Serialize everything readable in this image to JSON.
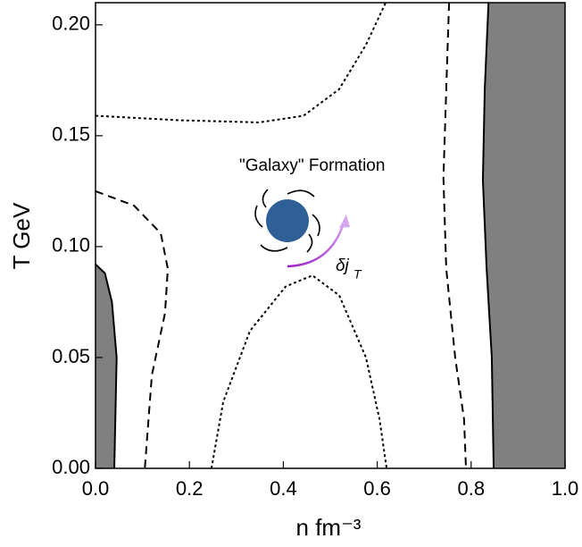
{
  "chart_data": {
    "type": "contour",
    "x_label": "n fm⁻³",
    "y_label": "T GeV",
    "xlim": [
      0,
      1.0
    ],
    "ylim": [
      0,
      0.21
    ],
    "xticks": [
      {
        "value": 0,
        "label": "0.0"
      },
      0.2,
      0.4,
      0.6,
      0.8,
      {
        "value": 1.0,
        "label": "1.0"
      }
    ],
    "yticks": [
      {
        "value": 0,
        "label": "0.00"
      },
      {
        "value": 0.05,
        "label": "0.05"
      },
      {
        "value": 0.1,
        "label": "0.10"
      },
      {
        "value": 0.15,
        "label": "0.15"
      },
      {
        "value": 0.2,
        "label": "0.20"
      }
    ],
    "regions": [
      {
        "color": "#808080",
        "fill_to": "left",
        "x": [
          0,
          0.02,
          0.035,
          0.045,
          0.042,
          0.04
        ],
        "y": [
          0.092,
          0.088,
          0.075,
          0.05,
          0.02,
          0
        ]
      },
      {
        "color": "#808080",
        "fill_to": "right",
        "x": [
          0.837,
          0.829,
          0.825,
          0.833,
          0.844,
          0.848
        ],
        "y": [
          0.21,
          0.171,
          0.13,
          0.09,
          0.05,
          0
        ]
      }
    ],
    "series": [
      {
        "style": "dashed",
        "color": "#000000",
        "x": [
          0,
          0.082,
          0.139,
          0.154,
          0.148,
          0.12,
          0.105
        ],
        "y": [
          0.125,
          0.1185,
          0.106,
          0.09,
          0.07,
          0.042,
          0
        ]
      },
      {
        "style": "dashed",
        "color": "#000000",
        "x": [
          0.753,
          0.747,
          0.741,
          0.747,
          0.766,
          0.785,
          0.789
        ],
        "y": [
          0.21,
          0.171,
          0.131,
          0.09,
          0.05,
          0.022,
          0
        ]
      },
      {
        "style": "dotted",
        "color": "#000000",
        "x": [
          0,
          0.177,
          0.348,
          0.443,
          0.519,
          0.576,
          0.618
        ],
        "y": [
          0.159,
          0.157,
          0.156,
          0.159,
          0.171,
          0.191,
          0.21
        ]
      },
      {
        "style": "dotted",
        "color": "#000000",
        "x": [
          0.247,
          0.272,
          0.329,
          0.405,
          0.462,
          0.519,
          0.576,
          0.605,
          0.62
        ],
        "y": [
          0,
          0.03,
          0.062,
          0.082,
          0.087,
          0.078,
          0.05,
          0.022,
          0
        ]
      }
    ],
    "annotations": [
      {
        "text": "\"Galaxy\"  Formation",
        "color": "#1a237e"
      },
      {
        "text": "δj",
        "subscript": "T",
        "color": "#8e24aa"
      }
    ]
  }
}
